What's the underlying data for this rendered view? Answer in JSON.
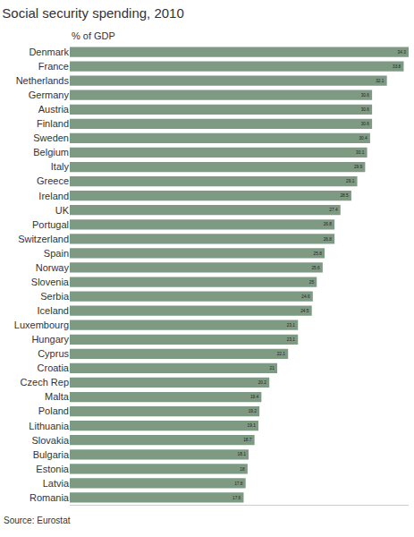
{
  "chart_data": {
    "type": "bar",
    "orientation": "horizontal",
    "title": "Social security spending, 2010",
    "subtitle": "% of GDP",
    "annotations": [
      "Source: Eurostat"
    ],
    "categories": [
      "Denmark",
      "France",
      "Netherlands",
      "Germany",
      "Austria",
      "Finland",
      "Sweden",
      "Belgium",
      "Italy",
      "Greece",
      "Ireland",
      "UK",
      "Portugal",
      "Switzerland",
      "Spain",
      "Norway",
      "Slovenia",
      "Serbia",
      "Iceland",
      "Luxembourg",
      "Hungary",
      "Cyprus",
      "Croatia",
      "Czech Rep",
      "Malta",
      "Poland",
      "Lithuania",
      "Slovakia",
      "Bulgaria",
      "Estonia",
      "Latvia",
      "Romania"
    ],
    "values": [
      34.3,
      33.8,
      32.1,
      30.6,
      30.6,
      30.6,
      30.4,
      30.1,
      29.9,
      29.1,
      28.5,
      27.4,
      26.8,
      26.8,
      25.8,
      25.6,
      25,
      24.6,
      24.5,
      23.1,
      23.1,
      22.1,
      21,
      20.2,
      19.4,
      19.2,
      19.1,
      18.7,
      18.1,
      18,
      17.8,
      17.6
    ],
    "color": "#7f9a83",
    "xlim": [
      0,
      34.3
    ],
    "xticks": [],
    "grid": false,
    "data_labels": true,
    "tick_labels": "y"
  }
}
